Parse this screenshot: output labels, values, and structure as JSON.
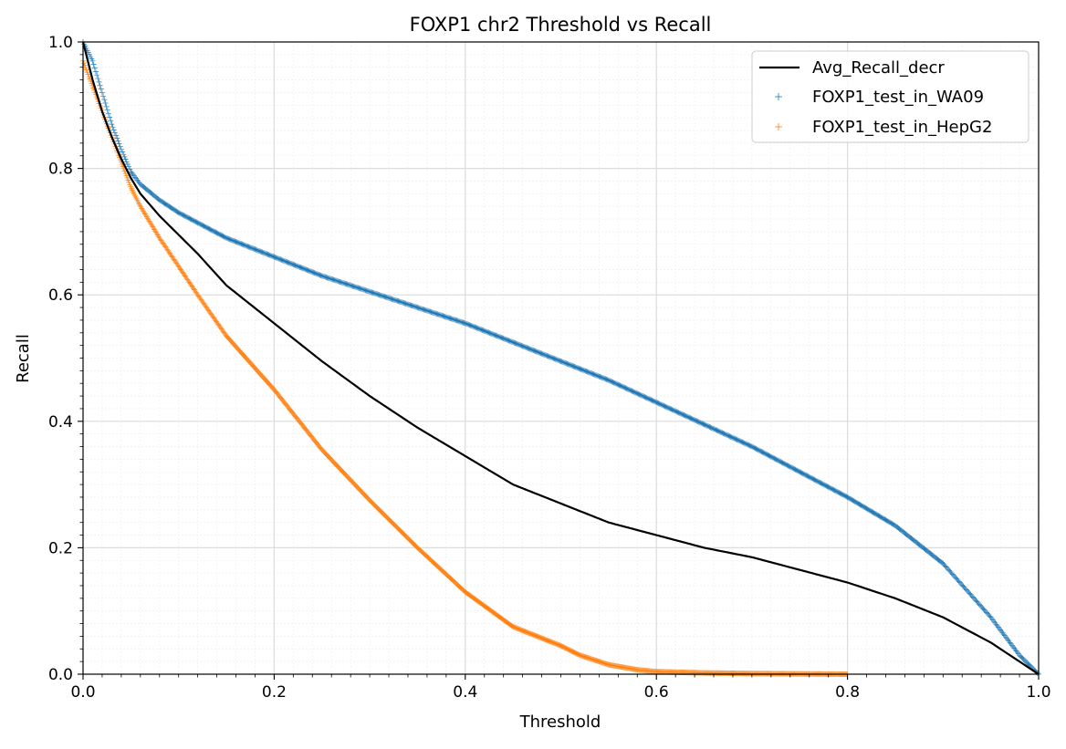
{
  "chart_data": {
    "type": "line",
    "title": "FOXP1 chr2 Threshold vs Recall",
    "xlabel": "Threshold",
    "ylabel": "Recall",
    "xlim": [
      0.0,
      1.0
    ],
    "ylim": [
      0.0,
      1.0
    ],
    "grid": true,
    "x_ticks": [
      "0.0",
      "0.2",
      "0.4",
      "0.6",
      "0.8",
      "1.0"
    ],
    "y_ticks": [
      "0.0",
      "0.2",
      "0.4",
      "0.6",
      "0.8",
      "1.0"
    ],
    "legend_position": "top-right",
    "series": [
      {
        "name": "Avg_Recall_decr",
        "style": "line",
        "color": "#000000",
        "x": [
          0.0,
          0.01,
          0.02,
          0.03,
          0.04,
          0.05,
          0.06,
          0.08,
          0.1,
          0.12,
          0.15,
          0.2,
          0.25,
          0.3,
          0.35,
          0.4,
          0.45,
          0.5,
          0.55,
          0.6,
          0.65,
          0.7,
          0.75,
          0.8,
          0.85,
          0.9,
          0.95,
          0.98,
          1.0
        ],
        "values": [
          1.0,
          0.94,
          0.89,
          0.85,
          0.815,
          0.785,
          0.76,
          0.725,
          0.695,
          0.665,
          0.615,
          0.555,
          0.495,
          0.44,
          0.39,
          0.345,
          0.3,
          0.27,
          0.24,
          0.22,
          0.2,
          0.185,
          0.165,
          0.145,
          0.12,
          0.09,
          0.05,
          0.02,
          0.0
        ]
      },
      {
        "name": "FOXP1_test_in_WA09",
        "style": "scatter",
        "marker": "+",
        "color": "#1f77b4",
        "x": [
          0.0,
          0.01,
          0.02,
          0.03,
          0.04,
          0.05,
          0.06,
          0.08,
          0.1,
          0.15,
          0.2,
          0.25,
          0.3,
          0.35,
          0.4,
          0.45,
          0.5,
          0.55,
          0.6,
          0.65,
          0.7,
          0.75,
          0.8,
          0.85,
          0.9,
          0.95,
          0.98,
          1.0
        ],
        "values": [
          1.0,
          0.97,
          0.92,
          0.87,
          0.83,
          0.795,
          0.775,
          0.75,
          0.73,
          0.69,
          0.66,
          0.63,
          0.605,
          0.58,
          0.555,
          0.525,
          0.495,
          0.465,
          0.43,
          0.395,
          0.36,
          0.32,
          0.28,
          0.235,
          0.175,
          0.09,
          0.03,
          0.0
        ]
      },
      {
        "name": "FOXP1_test_in_HepG2",
        "style": "scatter",
        "marker": "+",
        "color": "#ff7f0e",
        "x": [
          0.0,
          0.01,
          0.02,
          0.03,
          0.04,
          0.05,
          0.06,
          0.08,
          0.1,
          0.12,
          0.15,
          0.2,
          0.25,
          0.3,
          0.35,
          0.4,
          0.45,
          0.5,
          0.52,
          0.55,
          0.58,
          0.6,
          0.65,
          0.7,
          0.75,
          0.8
        ],
        "values": [
          0.97,
          0.93,
          0.89,
          0.85,
          0.81,
          0.77,
          0.74,
          0.69,
          0.645,
          0.6,
          0.535,
          0.45,
          0.355,
          0.275,
          0.2,
          0.13,
          0.075,
          0.045,
          0.03,
          0.015,
          0.007,
          0.004,
          0.002,
          0.001,
          0.0005,
          0.0
        ]
      }
    ]
  }
}
